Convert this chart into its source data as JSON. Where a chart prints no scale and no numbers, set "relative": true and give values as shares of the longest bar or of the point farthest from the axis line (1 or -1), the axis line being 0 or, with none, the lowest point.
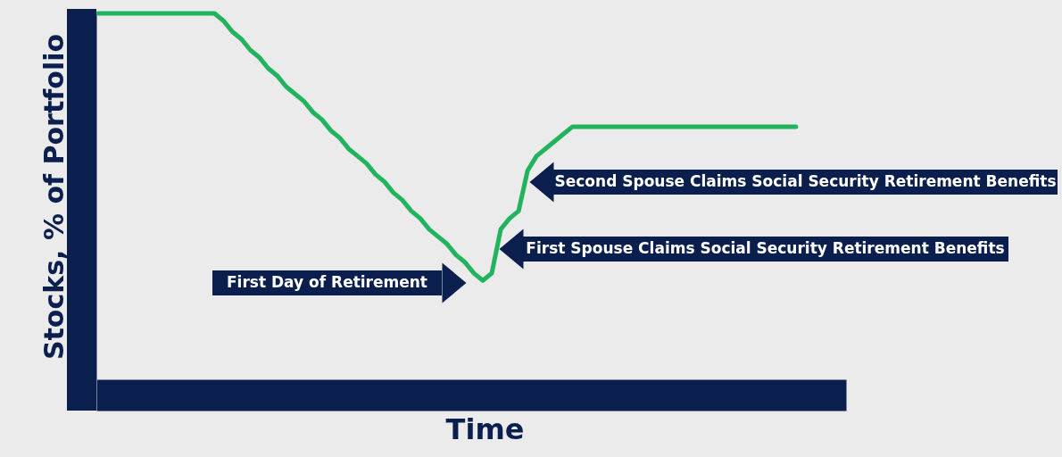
{
  "chart_data": {
    "type": "line",
    "relative": true,
    "xlabel": "Time",
    "ylabel": "Stocks, % of Portfolio",
    "color": "#22b35e",
    "categories": [
      null,
      null,
      null,
      null,
      null,
      null,
      null,
      null,
      null,
      null,
      null,
      null,
      null,
      null,
      null,
      null,
      null,
      null,
      null,
      null,
      null,
      null,
      null,
      null,
      null,
      null,
      null,
      null,
      null,
      null,
      null,
      null,
      null,
      null,
      null,
      null,
      null,
      null,
      null,
      null,
      null,
      null,
      null,
      null,
      null,
      null,
      null,
      null,
      null,
      null,
      null,
      null,
      null,
      null,
      null,
      null,
      null,
      null,
      null,
      null,
      null,
      null,
      null,
      null,
      null,
      null,
      null,
      null,
      null,
      null,
      null,
      null,
      null,
      null,
      null,
      null,
      null,
      null,
      null
    ],
    "values": [
      1,
      1,
      1,
      1,
      1,
      1,
      1,
      1,
      1,
      1,
      1,
      1,
      1,
      1,
      0.98,
      0.95,
      0.93,
      0.9,
      0.88,
      0.85,
      0.83,
      0.8,
      0.78,
      0.76,
      0.73,
      0.71,
      0.68,
      0.66,
      0.63,
      0.61,
      0.59,
      0.56,
      0.54,
      0.51,
      0.49,
      0.46,
      0.44,
      0.41,
      0.39,
      0.37,
      0.34,
      0.32,
      0.29,
      0.27,
      0.29,
      0.41,
      0.44,
      0.46,
      0.57,
      0.61,
      0.63,
      0.65,
      0.67,
      0.69,
      0.69,
      0.69,
      0.69,
      0.69,
      0.69,
      0.69,
      0.69,
      0.69,
      0.69,
      0.69,
      0.69,
      0.69,
      0.69,
      0.69,
      0.69,
      0.69,
      0.69,
      0.69,
      0.69,
      0.69,
      0.69,
      0.69,
      0.69,
      0.69,
      0.69
    ],
    "annotations": [
      "First Day of Retirement",
      "First Spouse Claims Social Security Retirement Benefits",
      "Second Spouse Claims Social Security Retirement Benefits"
    ]
  }
}
